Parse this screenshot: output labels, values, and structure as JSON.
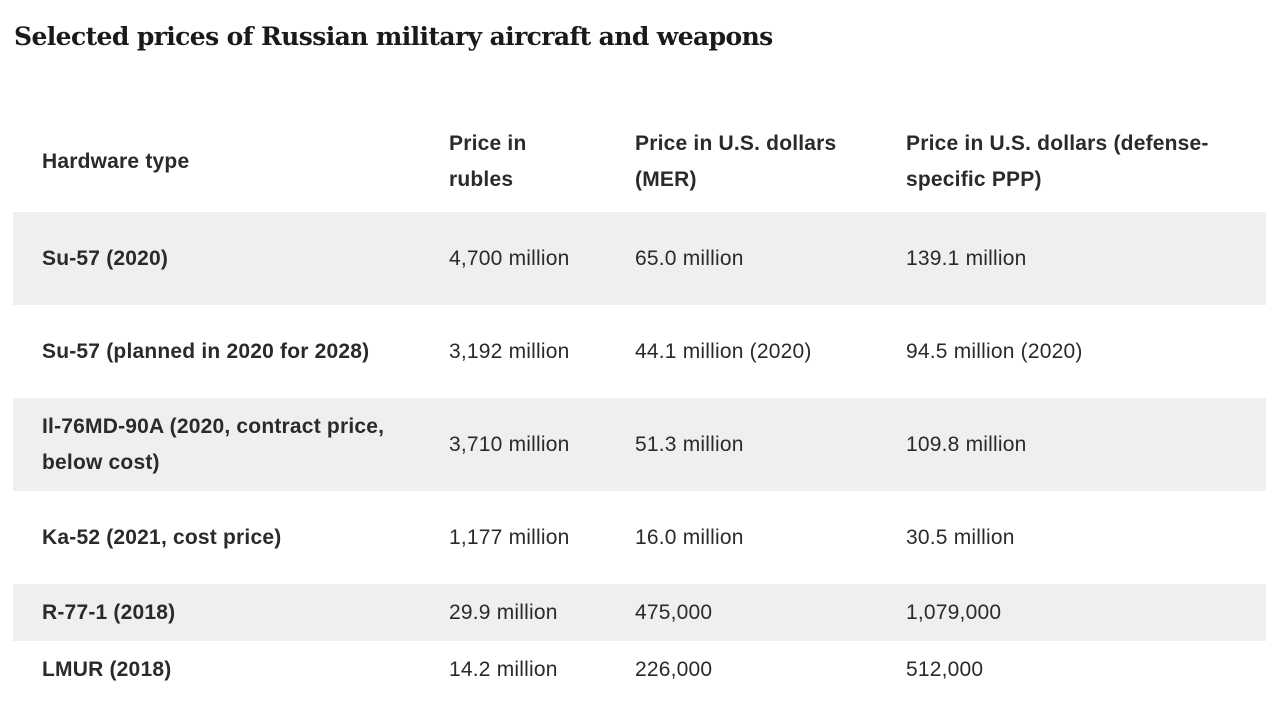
{
  "title": "Selected prices of Russian military aircraft and weapons",
  "table": {
    "headers": {
      "hardware": "Hardware type",
      "rubles": "Price in rubles",
      "usd_mer": "Price in U.S. dollars (MER)",
      "usd_ppp": "Price in U.S. dollars (defense-specific PPP)"
    },
    "rows": [
      {
        "hardware": "Su-57 (2020)",
        "rubles": "4,700 million",
        "usd_mer": "65.0 million",
        "usd_ppp": "139.1 million"
      },
      {
        "hardware": "Su-57 (planned in 2020 for 2028)",
        "rubles": "3,192 million",
        "usd_mer": "44.1 million (2020)",
        "usd_ppp": "94.5 million (2020)"
      },
      {
        "hardware": "Il-76MD-90A (2020, contract price, below cost)",
        "rubles": "3,710 million",
        "usd_mer": "51.3 million",
        "usd_ppp": "109.8 million"
      },
      {
        "hardware": "Ka-52 (2021, cost price)",
        "rubles": "1,177 million",
        "usd_mer": "16.0 million",
        "usd_ppp": "30.5 million"
      },
      {
        "hardware": "R-77-1 (2018)",
        "rubles": "29.9 million",
        "usd_mer": "475,000",
        "usd_ppp": "1,079,000"
      },
      {
        "hardware": "LMUR (2018)",
        "rubles": "14.2 million",
        "usd_mer": "226,000",
        "usd_ppp": "512,000"
      }
    ]
  },
  "colors": {
    "row_shade": "#efefef",
    "text": "#2a2a2a",
    "background": "#ffffff"
  }
}
